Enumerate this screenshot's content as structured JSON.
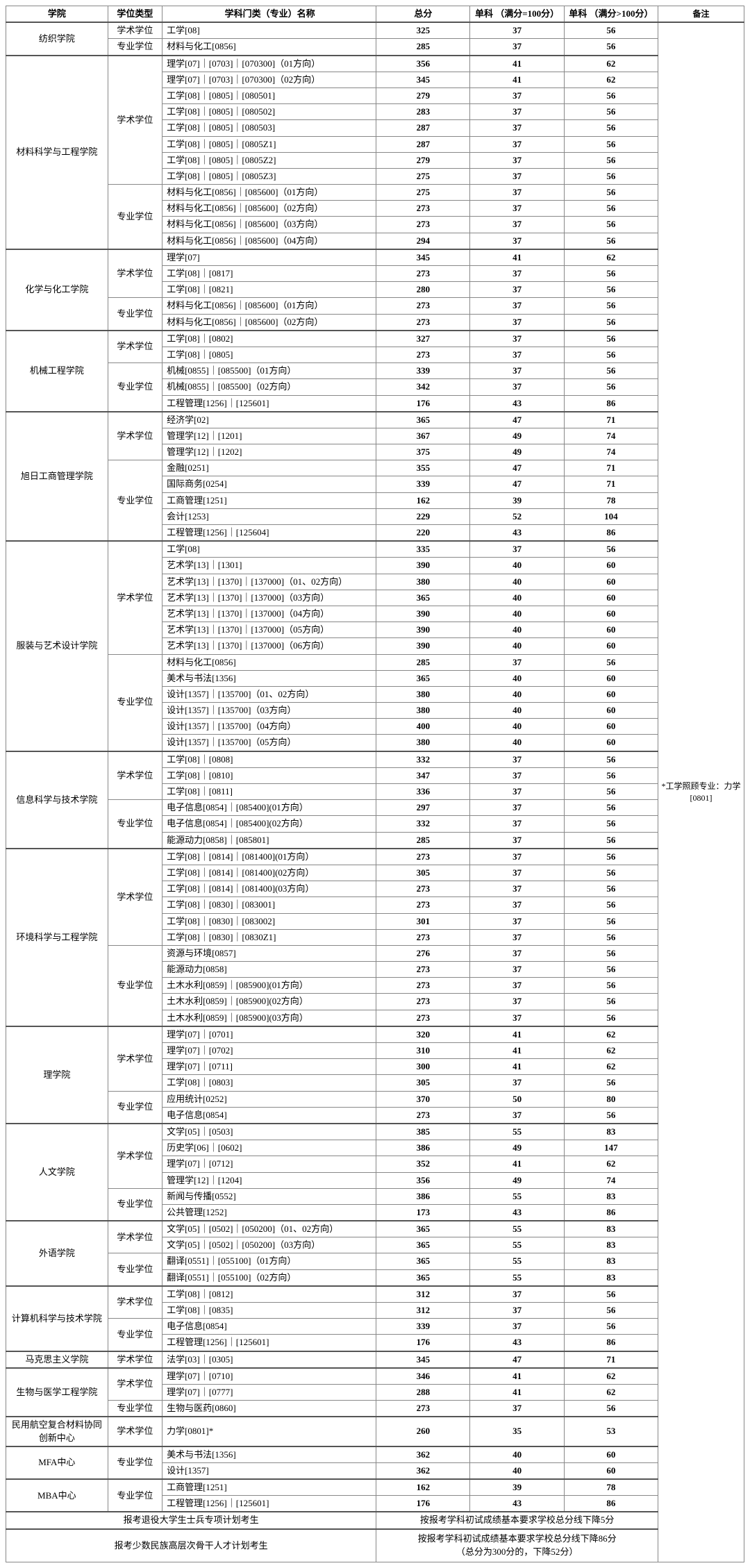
{
  "headers": {
    "college": "学院",
    "degree": "学位类型",
    "major": "学科门类（专业）名称",
    "total": "总分",
    "sub1": "单科\n（满分=100分）",
    "sub2": "单科\n（满分>100分）",
    "remark": "备注"
  },
  "remark_text": "*工学照顾专业：力学[0801]",
  "groups": [
    {
      "college": "纺织学院",
      "blocks": [
        {
          "degree": "学术学位",
          "rows": [
            {
              "m": "工学[08]",
              "t": "325",
              "s1": "37",
              "s2": "56"
            }
          ]
        },
        {
          "degree": "专业学位",
          "rows": [
            {
              "m": "材料与化工[0856]",
              "t": "285",
              "s1": "37",
              "s2": "56"
            }
          ]
        }
      ]
    },
    {
      "college": "材料科学与工程学院",
      "blocks": [
        {
          "degree": "学术学位",
          "rows": [
            {
              "m": "理学[07]｜[0703]｜[070300]（01方向）",
              "t": "356",
              "s1": "41",
              "s2": "62"
            },
            {
              "m": "理学[07]｜[0703]｜[070300]（02方向）",
              "t": "345",
              "s1": "41",
              "s2": "62"
            },
            {
              "m": "工学[08]｜[0805]｜[080501]",
              "t": "279",
              "s1": "37",
              "s2": "56"
            },
            {
              "m": "工学[08]｜[0805]｜[080502]",
              "t": "283",
              "s1": "37",
              "s2": "56"
            },
            {
              "m": "工学[08]｜[0805]｜[080503]",
              "t": "287",
              "s1": "37",
              "s2": "56"
            },
            {
              "m": "工学[08]｜[0805]｜[0805Z1]",
              "t": "287",
              "s1": "37",
              "s2": "56"
            },
            {
              "m": "工学[08]｜[0805]｜[0805Z2]",
              "t": "279",
              "s1": "37",
              "s2": "56"
            },
            {
              "m": "工学[08]｜[0805]｜[0805Z3]",
              "t": "275",
              "s1": "37",
              "s2": "56"
            }
          ]
        },
        {
          "degree": "专业学位",
          "rows": [
            {
              "m": "材料与化工[0856]｜[085600]（01方向）",
              "t": "275",
              "s1": "37",
              "s2": "56"
            },
            {
              "m": "材料与化工[0856]｜[085600]（02方向）",
              "t": "273",
              "s1": "37",
              "s2": "56"
            },
            {
              "m": "材料与化工[0856]｜[085600]（03方向）",
              "t": "273",
              "s1": "37",
              "s2": "56"
            },
            {
              "m": "材料与化工[0856]｜[085600]（04方向）",
              "t": "294",
              "s1": "37",
              "s2": "56"
            }
          ]
        }
      ]
    },
    {
      "college": "化学与化工学院",
      "blocks": [
        {
          "degree": "学术学位",
          "rows": [
            {
              "m": "理学[07]",
              "t": "345",
              "s1": "41",
              "s2": "62"
            },
            {
              "m": "工学[08]｜[0817]",
              "t": "273",
              "s1": "37",
              "s2": "56"
            },
            {
              "m": "工学[08]｜[0821]",
              "t": "280",
              "s1": "37",
              "s2": "56"
            }
          ]
        },
        {
          "degree": "专业学位",
          "rows": [
            {
              "m": "材料与化工[0856]｜[085600]（01方向）",
              "t": "273",
              "s1": "37",
              "s2": "56"
            },
            {
              "m": "材料与化工[0856]｜[085600]（02方向）",
              "t": "273",
              "s1": "37",
              "s2": "56"
            }
          ]
        }
      ]
    },
    {
      "college": "机械工程学院",
      "blocks": [
        {
          "degree": "学术学位",
          "rows": [
            {
              "m": "工学[08]｜[0802]",
              "t": "327",
              "s1": "37",
              "s2": "56"
            },
            {
              "m": "工学[08]｜[0805]",
              "t": "273",
              "s1": "37",
              "s2": "56"
            }
          ]
        },
        {
          "degree": "专业学位",
          "rows": [
            {
              "m": "机械[0855]｜[085500]（01方向）",
              "t": "339",
              "s1": "37",
              "s2": "56"
            },
            {
              "m": "机械[0855]｜[085500]（02方向）",
              "t": "342",
              "s1": "37",
              "s2": "56"
            },
            {
              "m": "工程管理[1256]｜[125601]",
              "t": "176",
              "s1": "43",
              "s2": "86"
            }
          ]
        }
      ]
    },
    {
      "college": "旭日工商管理学院",
      "blocks": [
        {
          "degree": "学术学位",
          "rows": [
            {
              "m": "经济学[02]",
              "t": "365",
              "s1": "47",
              "s2": "71"
            },
            {
              "m": "管理学[12]｜[1201]",
              "t": "367",
              "s1": "49",
              "s2": "74"
            },
            {
              "m": "管理学[12]｜[1202]",
              "t": "375",
              "s1": "49",
              "s2": "74"
            }
          ]
        },
        {
          "degree": "专业学位",
          "rows": [
            {
              "m": "金融[0251]",
              "t": "355",
              "s1": "47",
              "s2": "71"
            },
            {
              "m": "国际商务[0254]",
              "t": "339",
              "s1": "47",
              "s2": "71"
            },
            {
              "m": "工商管理[1251]",
              "t": "162",
              "s1": "39",
              "s2": "78"
            },
            {
              "m": "会计[1253]",
              "t": "229",
              "s1": "52",
              "s2": "104"
            },
            {
              "m": "工程管理[1256]｜[125604]",
              "t": "220",
              "s1": "43",
              "s2": "86"
            }
          ]
        }
      ]
    },
    {
      "college": "服装与艺术设计学院",
      "blocks": [
        {
          "degree": "学术学位",
          "rows": [
            {
              "m": "工学[08]",
              "t": "335",
              "s1": "37",
              "s2": "56"
            },
            {
              "m": "艺术学[13]｜[1301]",
              "t": "390",
              "s1": "40",
              "s2": "60"
            },
            {
              "m": "艺术学[13]｜[1370]｜[137000]（01、02方向）",
              "t": "380",
              "s1": "40",
              "s2": "60"
            },
            {
              "m": "艺术学[13]｜[1370]｜[137000]（03方向）",
              "t": "365",
              "s1": "40",
              "s2": "60"
            },
            {
              "m": "艺术学[13]｜[1370]｜[137000]（04方向）",
              "t": "390",
              "s1": "40",
              "s2": "60"
            },
            {
              "m": "艺术学[13]｜[1370]｜[137000]（05方向）",
              "t": "390",
              "s1": "40",
              "s2": "60"
            },
            {
              "m": "艺术学[13]｜[1370]｜[137000]（06方向）",
              "t": "390",
              "s1": "40",
              "s2": "60"
            }
          ]
        },
        {
          "degree": "专业学位",
          "rows": [
            {
              "m": "材料与化工[0856]",
              "t": "285",
              "s1": "37",
              "s2": "56"
            },
            {
              "m": "美术与书法[1356]",
              "t": "365",
              "s1": "40",
              "s2": "60"
            },
            {
              "m": "设计[1357]｜[135700]（01、02方向）",
              "t": "380",
              "s1": "40",
              "s2": "60"
            },
            {
              "m": "设计[1357]｜[135700]（03方向）",
              "t": "380",
              "s1": "40",
              "s2": "60"
            },
            {
              "m": "设计[1357]｜[135700]（04方向）",
              "t": "400",
              "s1": "40",
              "s2": "60"
            },
            {
              "m": "设计[1357]｜[135700]（05方向）",
              "t": "380",
              "s1": "40",
              "s2": "60"
            }
          ]
        }
      ]
    },
    {
      "college": "信息科学与技术学院",
      "blocks": [
        {
          "degree": "学术学位",
          "rows": [
            {
              "m": "工学[08]｜[0808]",
              "t": "332",
              "s1": "37",
              "s2": "56"
            },
            {
              "m": "工学[08]｜[0810]",
              "t": "347",
              "s1": "37",
              "s2": "56"
            },
            {
              "m": "工学[08]｜[0811]",
              "t": "336",
              "s1": "37",
              "s2": "56"
            }
          ]
        },
        {
          "degree": "专业学位",
          "rows": [
            {
              "m": "电子信息[0854]｜[085400](01方向）",
              "t": "297",
              "s1": "37",
              "s2": "56"
            },
            {
              "m": "电子信息[0854]｜[085400](02方向）",
              "t": "332",
              "s1": "37",
              "s2": "56"
            },
            {
              "m": "能源动力[0858]｜[085801]",
              "t": "285",
              "s1": "37",
              "s2": "56"
            }
          ]
        }
      ]
    },
    {
      "college": "环境科学与工程学院",
      "blocks": [
        {
          "degree": "学术学位",
          "rows": [
            {
              "m": "工学[08]｜[0814]｜[081400](01方向）",
              "t": "273",
              "s1": "37",
              "s2": "56"
            },
            {
              "m": "工学[08]｜[0814]｜[081400](02方向）",
              "t": "305",
              "s1": "37",
              "s2": "56"
            },
            {
              "m": "工学[08]｜[0814]｜[081400](03方向）",
              "t": "273",
              "s1": "37",
              "s2": "56"
            },
            {
              "m": "工学[08]｜[0830]｜[083001]",
              "t": "273",
              "s1": "37",
              "s2": "56"
            },
            {
              "m": "工学[08]｜[0830]｜[083002]",
              "t": "301",
              "s1": "37",
              "s2": "56"
            },
            {
              "m": "工学[08]｜[0830]｜[0830Z1]",
              "t": "273",
              "s1": "37",
              "s2": "56"
            }
          ]
        },
        {
          "degree": "专业学位",
          "rows": [
            {
              "m": "资源与环境[0857]",
              "t": "276",
              "s1": "37",
              "s2": "56"
            },
            {
              "m": "能源动力[0858]",
              "t": "273",
              "s1": "37",
              "s2": "56"
            },
            {
              "m": "土木水利[0859]｜[085900](01方向）",
              "t": "273",
              "s1": "37",
              "s2": "56"
            },
            {
              "m": "土木水利[0859]｜[085900](02方向）",
              "t": "273",
              "s1": "37",
              "s2": "56"
            },
            {
              "m": "土木水利[0859]｜[085900](03方向）",
              "t": "273",
              "s1": "37",
              "s2": "56"
            }
          ]
        }
      ]
    },
    {
      "college": "理学院",
      "blocks": [
        {
          "degree": "学术学位",
          "rows": [
            {
              "m": "理学[07]｜[0701]",
              "t": "320",
              "s1": "41",
              "s2": "62"
            },
            {
              "m": "理学[07]｜[0702]",
              "t": "310",
              "s1": "41",
              "s2": "62"
            },
            {
              "m": "理学[07]｜[0711]",
              "t": "300",
              "s1": "41",
              "s2": "62"
            },
            {
              "m": "工学[08]｜[0803]",
              "t": "305",
              "s1": "37",
              "s2": "56"
            }
          ]
        },
        {
          "degree": "专业学位",
          "rows": [
            {
              "m": "应用统计[0252]",
              "t": "370",
              "s1": "50",
              "s2": "80"
            },
            {
              "m": "电子信息[0854]",
              "t": "273",
              "s1": "37",
              "s2": "56"
            }
          ]
        }
      ]
    },
    {
      "college": "人文学院",
      "blocks": [
        {
          "degree": "学术学位",
          "rows": [
            {
              "m": "文学[05]｜[0503]",
              "t": "385",
              "s1": "55",
              "s2": "83"
            },
            {
              "m": "历史学[06]｜[0602]",
              "t": "386",
              "s1": "49",
              "s2": "147"
            },
            {
              "m": "理学[07]｜[0712]",
              "t": "352",
              "s1": "41",
              "s2": "62"
            },
            {
              "m": "管理学[12]｜[1204]",
              "t": "356",
              "s1": "49",
              "s2": "74"
            }
          ]
        },
        {
          "degree": "专业学位",
          "rows": [
            {
              "m": "新闻与传播[0552]",
              "t": "386",
              "s1": "55",
              "s2": "83"
            },
            {
              "m": "公共管理[1252]",
              "t": "173",
              "s1": "43",
              "s2": "86"
            }
          ]
        }
      ]
    },
    {
      "college": "外语学院",
      "blocks": [
        {
          "degree": "学术学位",
          "rows": [
            {
              "m": "文学[05]｜[0502]｜[050200]（01、02方向）",
              "t": "365",
              "s1": "55",
              "s2": "83"
            },
            {
              "m": "文学[05]｜[0502]｜[050200]（03方向）",
              "t": "365",
              "s1": "55",
              "s2": "83"
            }
          ]
        },
        {
          "degree": "专业学位",
          "rows": [
            {
              "m": "翻译[0551]｜[055100]（01方向）",
              "t": "365",
              "s1": "55",
              "s2": "83"
            },
            {
              "m": "翻译[0551]｜[055100]（02方向）",
              "t": "365",
              "s1": "55",
              "s2": "83"
            }
          ]
        }
      ]
    },
    {
      "college": "计算机科学与技术学院",
      "blocks": [
        {
          "degree": "学术学位",
          "rows": [
            {
              "m": "工学[08]｜[0812]",
              "t": "312",
              "s1": "37",
              "s2": "56"
            },
            {
              "m": "工学[08]｜[0835]",
              "t": "312",
              "s1": "37",
              "s2": "56"
            }
          ]
        },
        {
          "degree": "专业学位",
          "rows": [
            {
              "m": "电子信息[0854]",
              "t": "339",
              "s1": "37",
              "s2": "56"
            },
            {
              "m": "工程管理[1256]｜[125601]",
              "t": "176",
              "s1": "43",
              "s2": "86"
            }
          ]
        }
      ]
    },
    {
      "college": "马克思主义学院",
      "blocks": [
        {
          "degree": "学术学位",
          "rows": [
            {
              "m": "法学[03]｜[0305]",
              "t": "345",
              "s1": "47",
              "s2": "71"
            }
          ]
        }
      ]
    },
    {
      "college": "生物与医学工程学院",
      "blocks": [
        {
          "degree": "学术学位",
          "rows": [
            {
              "m": "理学[07]｜[0710]",
              "t": "346",
              "s1": "41",
              "s2": "62"
            },
            {
              "m": "理学[07]｜[0777]",
              "t": "288",
              "s1": "41",
              "s2": "62"
            }
          ]
        },
        {
          "degree": "专业学位",
          "rows": [
            {
              "m": "生物与医药[0860]",
              "t": "273",
              "s1": "37",
              "s2": "56"
            }
          ]
        }
      ]
    },
    {
      "college": "民用航空复合材料协同创新中心",
      "blocks": [
        {
          "degree": "学术学位",
          "rows": [
            {
              "m": "力学[0801]*",
              "t": "260",
              "s1": "35",
              "s2": "53"
            }
          ]
        }
      ]
    },
    {
      "college": "MFA中心",
      "blocks": [
        {
          "degree": "专业学位",
          "rows": [
            {
              "m": "美术与书法[1356]",
              "t": "362",
              "s1": "40",
              "s2": "60"
            },
            {
              "m": "设计[1357]",
              "t": "362",
              "s1": "40",
              "s2": "60"
            }
          ]
        }
      ]
    },
    {
      "college": "MBA中心",
      "blocks": [
        {
          "degree": "专业学位",
          "rows": [
            {
              "m": "工商管理[1251]",
              "t": "162",
              "s1": "39",
              "s2": "78"
            },
            {
              "m": "工程管理[1256]｜[125601]",
              "t": "176",
              "s1": "43",
              "s2": "86"
            }
          ]
        }
      ]
    }
  ],
  "notes": [
    {
      "label": "报考退役大学生士兵专项计划考生",
      "text": "按报考学科初试成绩基本要求学校总分线下降5分"
    },
    {
      "label": "报考少数民族高层次骨干人才计划考生",
      "text": "按报考学科初试成绩基本要求学校总分线下降86分\n（总分为300分的，下降52分）"
    }
  ]
}
